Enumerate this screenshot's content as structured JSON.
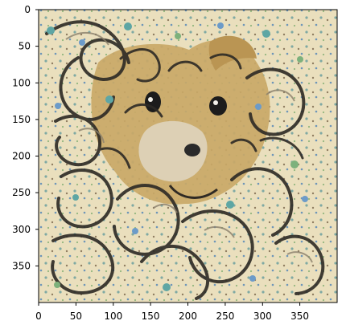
{
  "figure": {
    "type": "image",
    "description_visible": false,
    "x_ticks": [
      "0",
      "50",
      "100",
      "150",
      "200",
      "250",
      "300",
      "350"
    ],
    "y_ticks": [
      "0",
      "50",
      "100",
      "150",
      "200",
      "250",
      "300",
      "350"
    ],
    "x_tick_values": [
      0,
      50,
      100,
      150,
      200,
      250,
      300,
      350
    ],
    "y_tick_values": [
      0,
      50,
      100,
      150,
      200,
      250,
      300,
      350
    ],
    "xlim": [
      0,
      400
    ],
    "ylim": [
      400,
      0
    ]
  },
  "colors": {
    "image_base": "#e9ddb8",
    "pattern_dark": "#2d2a25",
    "pattern_mid": "#7c7465",
    "bear_fur": "#c8a45f",
    "bear_fur_light": "#dfc388",
    "accent_teal": "#5ea6a4",
    "accent_blue": "#6c9bc9",
    "accent_green": "#7db17c",
    "spine": "#000000"
  }
}
